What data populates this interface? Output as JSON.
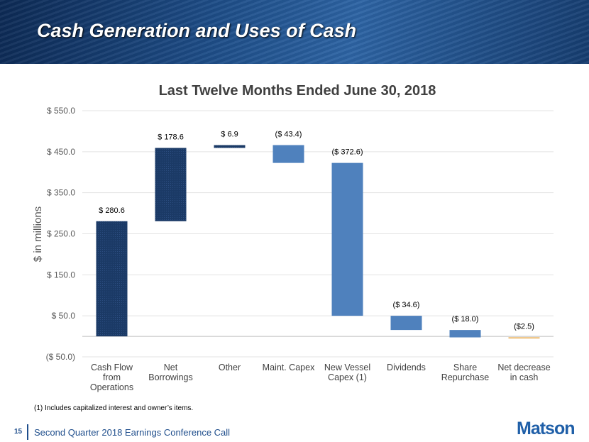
{
  "slide_title": "Cash Generation and Uses of Cash",
  "footnote": "(1) Includes capitalized interest and owner’s items.",
  "page_number": "15",
  "footer": "Second Quarter 2018 Earnings Conference Call",
  "logo": "Matson",
  "chart_data": {
    "type": "waterfall",
    "title": "Last Twelve Months Ended June 30, 2018",
    "y_label": "$ in millions",
    "categories": [
      "Cash Flow from Operations",
      "Net Borrowings",
      "Other",
      "Maint. Capex",
      "New Vessel Capex (1)",
      "Dividends",
      "Share Repurchase",
      "Net decrease in cash"
    ],
    "values": [
      280.6,
      178.6,
      6.9,
      -43.4,
      -372.6,
      -34.6,
      -18.0,
      -2.5
    ],
    "value_labels": [
      "$ 280.6",
      "$ 178.6",
      "$ 6.9",
      "($ 43.4)",
      "($ 372.6)",
      "($ 34.6)",
      "($ 18.0)",
      "($2.5)"
    ],
    "colors": [
      "#1b3a66",
      "#1b3a66",
      "#1b3a66",
      "#4f81bd",
      "#4f81bd",
      "#4f81bd",
      "#4f81bd",
      "#e6a23c"
    ],
    "ylim": [
      -50,
      550
    ],
    "yticks": [
      {
        "value": -50,
        "label": "($ 50.0)"
      },
      {
        "value": 50,
        "label": "$ 50.0"
      },
      {
        "value": 150,
        "label": "$ 150.0"
      },
      {
        "value": 250,
        "label": "$ 250.0"
      },
      {
        "value": 350,
        "label": "$ 350.0"
      },
      {
        "value": 450,
        "label": "$ 450.0"
      },
      {
        "value": 550,
        "label": "$ 550.0"
      }
    ],
    "grid": true
  }
}
